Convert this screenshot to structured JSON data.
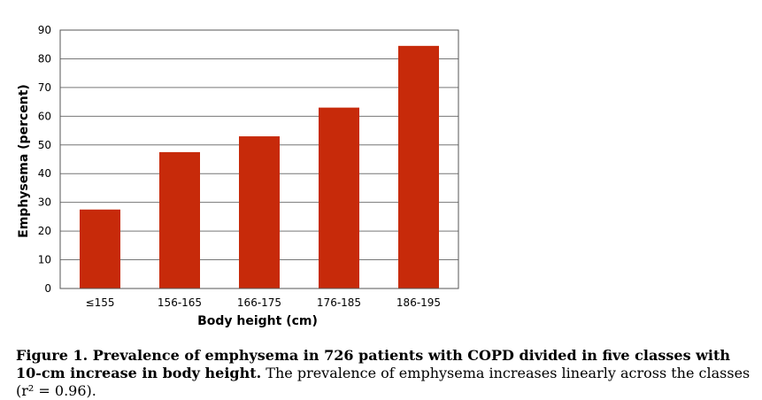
{
  "chart_data": {
    "type": "bar",
    "categories": [
      "≤155",
      "156-165",
      "166-175",
      "176-185",
      "186-195"
    ],
    "values": [
      27.5,
      47.5,
      53,
      63,
      84.5
    ],
    "xlabel": "Body height (cm)",
    "ylabel": "Emphysema (percent)",
    "ylim": [
      0,
      90
    ],
    "yticks": [
      0,
      10,
      20,
      30,
      40,
      50,
      60,
      70,
      80,
      90
    ],
    "grid": true,
    "bar_color": "#c72a0a"
  },
  "caption": {
    "lead": "Figure 1.  Prevalence of emphysema in 726 patients with COPD divided in five classes with 10-cm increase in body height.",
    "rest": " The prevalence of emphysema increases linearly across the classes (r² = 0.96)."
  }
}
